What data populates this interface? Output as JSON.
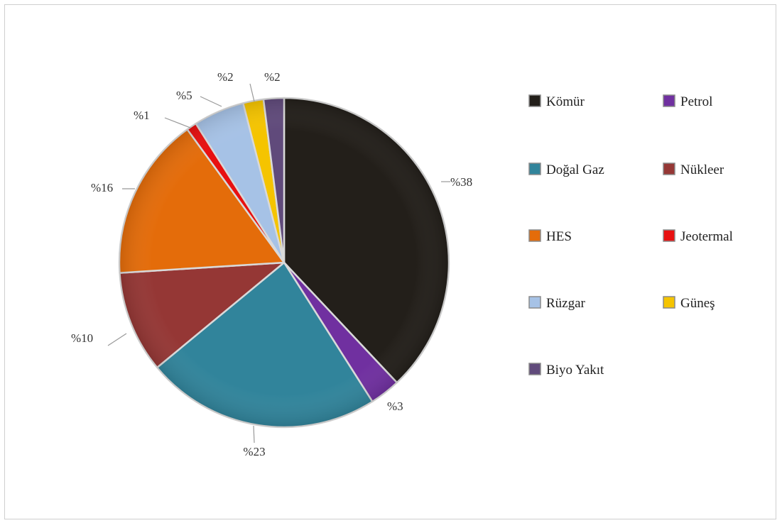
{
  "chart_data": {
    "type": "pie",
    "title": "",
    "slices": [
      {
        "name": "Kömür",
        "value": 38,
        "label": "%38",
        "color": "#231f1a"
      },
      {
        "name": "Petrol",
        "value": 3,
        "label": "%3",
        "color": "#7030a0"
      },
      {
        "name": "Doğal Gaz",
        "value": 23,
        "label": "%23",
        "color": "#31849b"
      },
      {
        "name": "Nükleer",
        "value": 10,
        "label": "%10",
        "color": "#953735"
      },
      {
        "name": "HES",
        "value": 16,
        "label": "%16",
        "color": "#e46c0a"
      },
      {
        "name": "Jeotermal",
        "value": 1,
        "label": "%1",
        "color": "#e81010"
      },
      {
        "name": "Rüzgar",
        "value": 5,
        "label": "%5",
        "color": "#a6c2e6"
      },
      {
        "name": "Güneş",
        "value": 2,
        "label": "%2",
        "color": "#f5c400"
      },
      {
        "name": "Biyo Yakıt",
        "value": 2,
        "label": "%2",
        "color": "#604a7b"
      }
    ],
    "legend_placement": "right"
  }
}
